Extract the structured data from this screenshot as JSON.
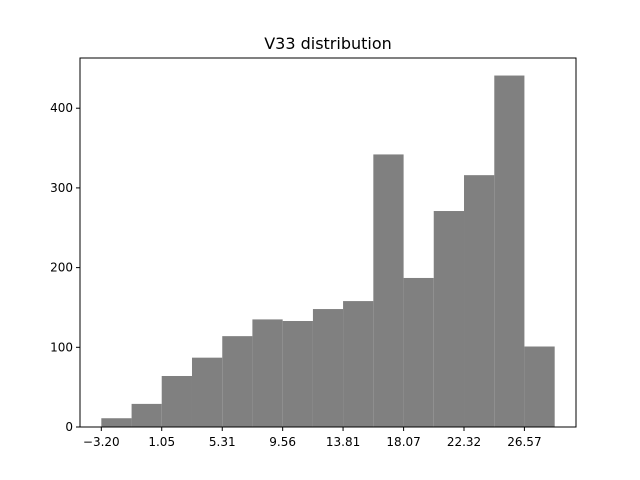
{
  "chart_data": {
    "type": "bar",
    "title": "V33 distribution",
    "xlabel": "",
    "ylabel": "",
    "bin_edges": [
      -3.2,
      -1.07,
      1.05,
      3.18,
      5.31,
      7.43,
      9.56,
      11.69,
      13.81,
      15.94,
      18.07,
      20.19,
      22.32,
      24.45,
      26.57,
      28.7
    ],
    "values": [
      11,
      29,
      64,
      87,
      114,
      135,
      133,
      148,
      158,
      342,
      187,
      271,
      316,
      441,
      101
    ],
    "xticks": [
      -3.2,
      1.05,
      5.31,
      9.56,
      13.81,
      18.07,
      22.32,
      26.57
    ],
    "xtick_labels": [
      "−3.20",
      "1.05",
      "5.31",
      "9.56",
      "13.81",
      "18.07",
      "22.32",
      "26.57"
    ],
    "yticks": [
      0,
      100,
      200,
      300,
      400
    ],
    "ytick_labels": [
      "0",
      "100",
      "200",
      "300",
      "400"
    ],
    "xlim": [
      -4.7,
      30.2
    ],
    "ylim": [
      0,
      463
    ],
    "bar_color": "#808080",
    "grid": false
  }
}
